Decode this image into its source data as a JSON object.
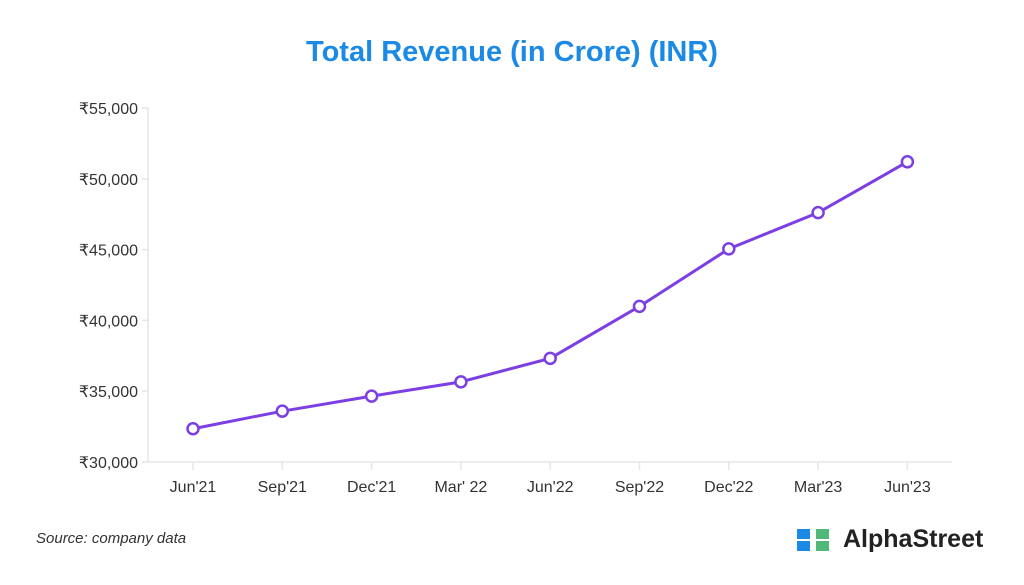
{
  "chart_data": {
    "type": "line",
    "title": "Total Revenue (in Crore) (INR)",
    "xlabel": "",
    "ylabel": "",
    "categories": [
      "Jun'21",
      "Sep'21",
      "Dec'21",
      "Mar' 22",
      "Jun'22",
      "Sep'22",
      "Dec'22",
      "Mar'23",
      "Jun'23"
    ],
    "series": [
      {
        "name": "Total Revenue",
        "values": [
          32350,
          33590,
          34650,
          35660,
          37320,
          40990,
          45050,
          47610,
          51200
        ],
        "color": "#7b3fe4"
      }
    ],
    "ylim": [
      30000,
      55000
    ],
    "yticks": [
      30000,
      35000,
      40000,
      45000,
      50000,
      55000
    ],
    "ytick_labels": [
      "₹30,000",
      "₹35,000",
      "₹40,000",
      "₹45,000",
      "₹50,000",
      "₹55,000"
    ],
    "grid": false
  },
  "footer": {
    "source": "Source: company data",
    "brand": "AlphaStreet"
  }
}
